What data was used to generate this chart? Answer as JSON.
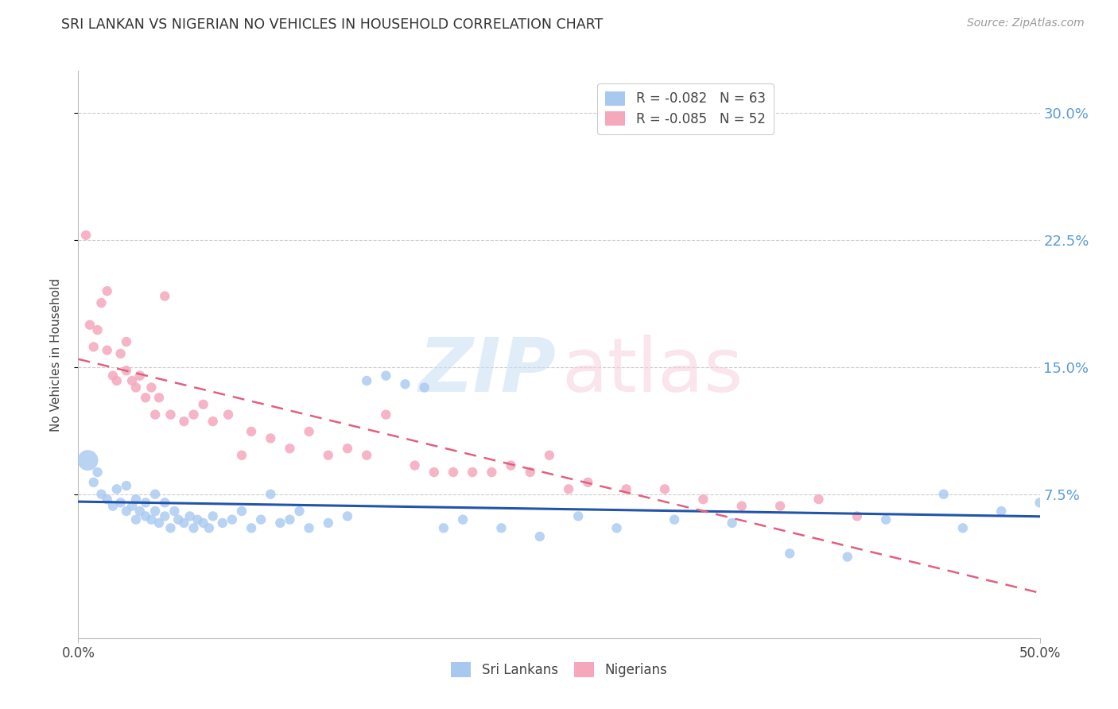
{
  "title": "SRI LANKAN VS NIGERIAN NO VEHICLES IN HOUSEHOLD CORRELATION CHART",
  "source": "Source: ZipAtlas.com",
  "ylabel": "No Vehicles in Household",
  "ytick_labels": [
    "7.5%",
    "15.0%",
    "22.5%",
    "30.0%"
  ],
  "ytick_values": [
    0.075,
    0.15,
    0.225,
    0.3
  ],
  "xlim": [
    0.0,
    0.5
  ],
  "ylim": [
    -0.01,
    0.325
  ],
  "legend_line1": "R = -0.082   N = 63",
  "legend_line2": "R = -0.085   N = 52",
  "color_sri": "#a8c8f0",
  "color_nigerian": "#f5a8bc",
  "trendline_sri_color": "#2255aa",
  "trendline_nigerian_color": "#e06080",
  "watermark_zip": "ZIP",
  "watermark_atlas": "atlas",
  "sri_lankans_x": [
    0.005,
    0.008,
    0.01,
    0.012,
    0.015,
    0.018,
    0.02,
    0.022,
    0.025,
    0.025,
    0.028,
    0.03,
    0.03,
    0.032,
    0.035,
    0.035,
    0.038,
    0.04,
    0.04,
    0.042,
    0.045,
    0.045,
    0.048,
    0.05,
    0.052,
    0.055,
    0.058,
    0.06,
    0.062,
    0.065,
    0.068,
    0.07,
    0.075,
    0.08,
    0.085,
    0.09,
    0.095,
    0.1,
    0.105,
    0.11,
    0.115,
    0.12,
    0.13,
    0.14,
    0.15,
    0.16,
    0.17,
    0.18,
    0.19,
    0.2,
    0.22,
    0.24,
    0.26,
    0.28,
    0.31,
    0.34,
    0.37,
    0.4,
    0.42,
    0.45,
    0.46,
    0.48,
    0.5
  ],
  "sri_lankans_y": [
    0.095,
    0.082,
    0.088,
    0.075,
    0.072,
    0.068,
    0.078,
    0.07,
    0.065,
    0.08,
    0.068,
    0.072,
    0.06,
    0.065,
    0.07,
    0.062,
    0.06,
    0.065,
    0.075,
    0.058,
    0.062,
    0.07,
    0.055,
    0.065,
    0.06,
    0.058,
    0.062,
    0.055,
    0.06,
    0.058,
    0.055,
    0.062,
    0.058,
    0.06,
    0.065,
    0.055,
    0.06,
    0.075,
    0.058,
    0.06,
    0.065,
    0.055,
    0.058,
    0.062,
    0.142,
    0.145,
    0.14,
    0.138,
    0.055,
    0.06,
    0.055,
    0.05,
    0.062,
    0.055,
    0.06,
    0.058,
    0.04,
    0.038,
    0.06,
    0.075,
    0.055,
    0.065,
    0.07
  ],
  "nigerians_x": [
    0.004,
    0.006,
    0.008,
    0.01,
    0.012,
    0.015,
    0.015,
    0.018,
    0.02,
    0.022,
    0.025,
    0.025,
    0.028,
    0.03,
    0.032,
    0.035,
    0.038,
    0.04,
    0.042,
    0.045,
    0.048,
    0.055,
    0.06,
    0.065,
    0.07,
    0.078,
    0.085,
    0.09,
    0.1,
    0.11,
    0.12,
    0.13,
    0.14,
    0.15,
    0.16,
    0.175,
    0.185,
    0.195,
    0.205,
    0.215,
    0.225,
    0.235,
    0.245,
    0.255,
    0.265,
    0.285,
    0.305,
    0.325,
    0.345,
    0.365,
    0.385,
    0.405
  ],
  "nigerians_y": [
    0.228,
    0.175,
    0.162,
    0.172,
    0.188,
    0.195,
    0.16,
    0.145,
    0.142,
    0.158,
    0.148,
    0.165,
    0.142,
    0.138,
    0.145,
    0.132,
    0.138,
    0.122,
    0.132,
    0.192,
    0.122,
    0.118,
    0.122,
    0.128,
    0.118,
    0.122,
    0.098,
    0.112,
    0.108,
    0.102,
    0.112,
    0.098,
    0.102,
    0.098,
    0.122,
    0.092,
    0.088,
    0.088,
    0.088,
    0.088,
    0.092,
    0.088,
    0.098,
    0.078,
    0.082,
    0.078,
    0.078,
    0.072,
    0.068,
    0.068,
    0.072,
    0.062
  ],
  "sri_large_idx": 0,
  "sri_large_size": 350,
  "sri_small_size": 80,
  "nig_size": 80,
  "background_color": "#ffffff",
  "grid_color": "#cccccc",
  "tick_color_right": "#5b9bd5",
  "font_color_title": "#333333"
}
